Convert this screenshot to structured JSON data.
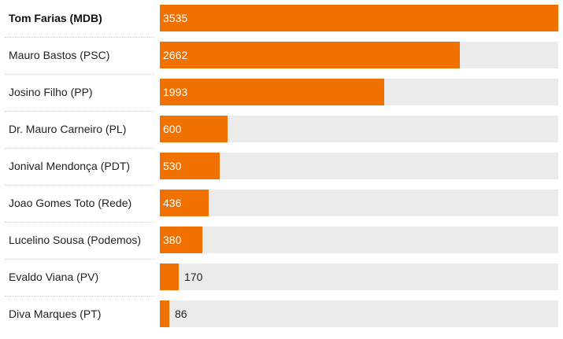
{
  "chart_data": {
    "type": "bar",
    "orientation": "horizontal",
    "categories": [
      "Tom Farias (MDB)",
      "Mauro Bastos (PSC)",
      "Josino Filho (PP)",
      "Dr. Mauro Carneiro (PL)",
      "Jonival Mendonça (PDT)",
      "Joao Gomes Toto (Rede)",
      "Lucelino Sousa (Podemos)",
      "Evaldo Viana (PV)",
      "Diva Marques (PT)"
    ],
    "values": [
      3535,
      2662,
      1993,
      600,
      530,
      436,
      380,
      170,
      86
    ],
    "xlim": [
      0,
      3535
    ],
    "highlight_index": 0,
    "colors": {
      "bar": "#f07000",
      "track": "#ebebeb"
    }
  }
}
